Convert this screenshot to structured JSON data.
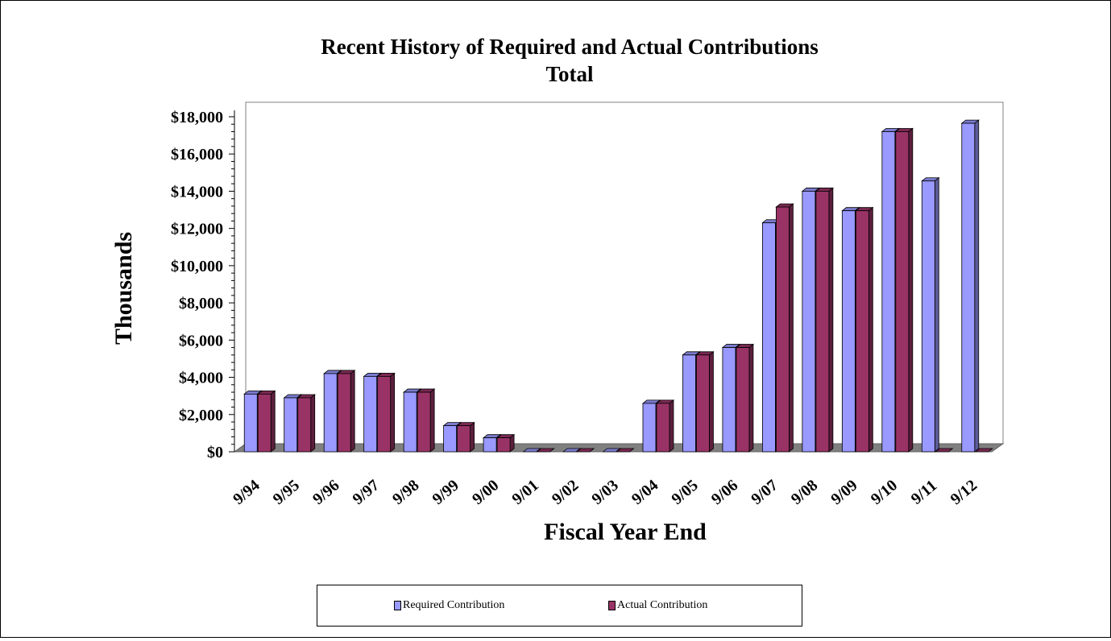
{
  "chart_data": {
    "type": "bar",
    "title": "Recent History of Required and Actual Contributions",
    "subtitle": "Total",
    "xlabel": "Fiscal Year End",
    "ylabel": "Thousands",
    "categories": [
      "9/94",
      "9/95",
      "9/96",
      "9/97",
      "9/98",
      "9/99",
      "9/00",
      "9/01",
      "9/02",
      "9/03",
      "9/04",
      "9/05",
      "9/06",
      "9/07",
      "9/08",
      "9/09",
      "9/10",
      "9/11",
      "9/12"
    ],
    "series": [
      {
        "name": "Required Contribution",
        "color": "#9999ff",
        "values": [
          3100,
          2900,
          4200,
          4050,
          3200,
          1400,
          750,
          0,
          0,
          0,
          2600,
          5200,
          5600,
          12300,
          14000,
          12950,
          17200,
          14550,
          17650
        ]
      },
      {
        "name": "Actual Contribution",
        "color": "#993366",
        "values": [
          3100,
          2900,
          4200,
          4050,
          3200,
          1400,
          750,
          0,
          0,
          0,
          2600,
          5200,
          5600,
          13150,
          14000,
          12950,
          17200,
          0,
          0
        ]
      }
    ],
    "ylim": [
      0,
      18000
    ],
    "yticks": [
      0,
      2000,
      4000,
      6000,
      8000,
      10000,
      12000,
      14000,
      16000,
      18000
    ],
    "ytick_labels": [
      "$0",
      "$2,000",
      "$4,000",
      "$6,000",
      "$8,000",
      "$10,000",
      "$12,000",
      "$14,000",
      "$16,000",
      "$18,000"
    ],
    "grid": false,
    "legend": "bottom"
  }
}
